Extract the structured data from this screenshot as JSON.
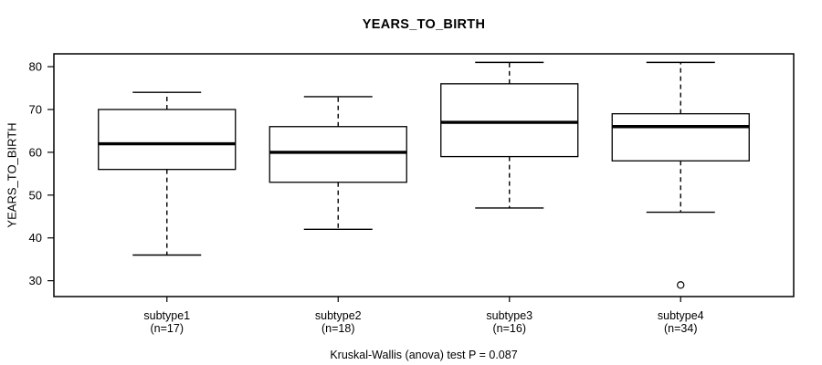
{
  "title": "YEARS_TO_BIRTH",
  "y_axis_label": "YEARS_TO_BIRTH",
  "caption": "Kruskal-Wallis (anova) test P = 0.087",
  "colors": {
    "ink": "#000000",
    "background": "#ffffff"
  },
  "chart_data": {
    "type": "boxplot",
    "title": "YEARS_TO_BIRTH",
    "ylabel": "YEARS_TO_BIRTH",
    "xlabel": "",
    "ylim": [
      26.3,
      83.0
    ],
    "yticks": [
      30,
      40,
      50,
      60,
      70,
      80
    ],
    "grid": false,
    "legend": false,
    "footnote": "Kruskal-Wallis (anova) test P = 0.087",
    "groups": [
      {
        "label": "subtype1",
        "n_label": "(n=17)",
        "n": 17,
        "whisker_low": 36,
        "q1": 56,
        "median": 62,
        "q3": 70,
        "whisker_high": 74,
        "outliers": []
      },
      {
        "label": "subtype2",
        "n_label": "(n=18)",
        "n": 18,
        "whisker_low": 42,
        "q1": 53,
        "median": 60,
        "q3": 66,
        "whisker_high": 73,
        "outliers": []
      },
      {
        "label": "subtype3",
        "n_label": "(n=16)",
        "n": 16,
        "whisker_low": 47,
        "q1": 59,
        "median": 67,
        "q3": 76,
        "whisker_high": 81,
        "outliers": []
      },
      {
        "label": "subtype4",
        "n_label": "(n=34)",
        "n": 34,
        "whisker_low": 46,
        "q1": 58,
        "median": 66,
        "q3": 69,
        "whisker_high": 81,
        "outliers": [
          29
        ]
      }
    ]
  }
}
